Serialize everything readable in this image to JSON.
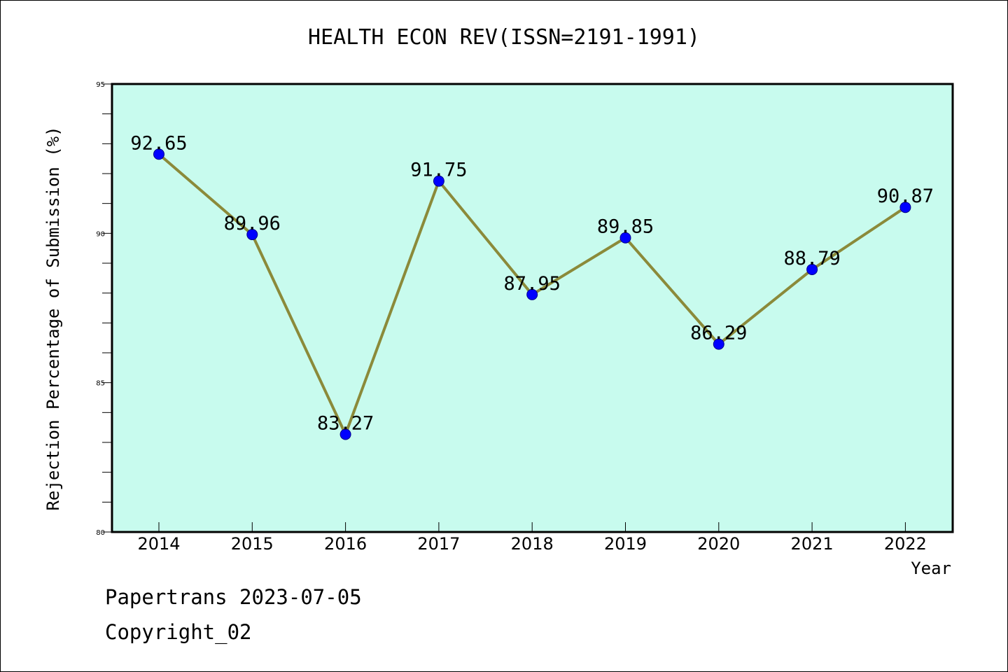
{
  "title": "HEALTH ECON REV(ISSN=2191-1991)",
  "footer": {
    "line1": "Papertrans 2023-07-05",
    "line2": "Copyright_02"
  },
  "colors": {
    "plot_bg": "#c8fbee",
    "line": "#8b8a3a",
    "marker": "#0000ff",
    "axis": "#000000"
  },
  "chart_data": {
    "type": "line",
    "title": "HEALTH ECON REV(ISSN=2191-1991)",
    "xlabel": "Year",
    "ylabel": "Rejection Percentage of Submission (%)",
    "categories": [
      "2014",
      "2015",
      "2016",
      "2017",
      "2018",
      "2019",
      "2020",
      "2021",
      "2022"
    ],
    "values": [
      92.65,
      89.96,
      83.27,
      91.75,
      87.95,
      89.85,
      86.29,
      88.79,
      90.87
    ],
    "data_labels": [
      "92.65",
      "89.96",
      "83.27",
      "91.75",
      "87.95",
      "89.85",
      "86.29",
      "88.79",
      "90.87"
    ],
    "ylim": [
      80,
      95
    ],
    "yticks": [
      80,
      85,
      90,
      95
    ],
    "ytick_labels": [
      "80",
      "85",
      "90",
      "95"
    ],
    "y_minor_step": 1,
    "grid": false,
    "legend": "none"
  }
}
